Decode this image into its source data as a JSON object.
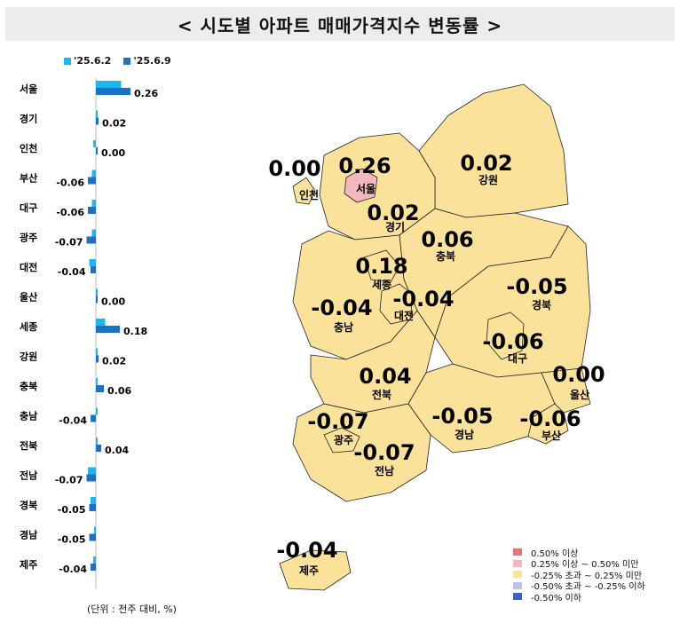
{
  "title": "< 시도별 아파트 매매가격지수 변동률 >",
  "legend": [
    {
      "label": "'25.6.2",
      "color": "#1ab8f0"
    },
    {
      "label": "'25.6.9",
      "color": "#1a72c4"
    }
  ],
  "unit_note": "(단위 : 전주 대비, %)",
  "chart_data": {
    "type": "bar",
    "categories": [
      "서울",
      "경기",
      "인천",
      "부산",
      "대구",
      "광주",
      "대전",
      "울산",
      "세종",
      "강원",
      "충북",
      "충남",
      "전북",
      "전남",
      "경북",
      "경남",
      "제주"
    ],
    "series": [
      {
        "name": "'25.6.2",
        "values": [
          0.19,
          0.0,
          -0.02,
          -0.03,
          -0.03,
          -0.03,
          -0.05,
          0.0,
          0.07,
          0.01,
          0.0,
          0.0,
          0.0,
          -0.06,
          -0.04,
          -0.01,
          -0.02
        ]
      },
      {
        "name": "'25.6.9",
        "values": [
          0.26,
          0.02,
          0.0,
          -0.06,
          -0.06,
          -0.07,
          -0.04,
          0.0,
          0.18,
          0.02,
          0.06,
          -0.04,
          0.04,
          -0.07,
          -0.05,
          -0.05,
          -0.04
        ]
      }
    ],
    "value_labels": [
      "0.26",
      "0.02",
      "0.00",
      "-0.06",
      "-0.06",
      "-0.07",
      "-0.04",
      "0.00",
      "0.18",
      "0.02",
      "0.06",
      "-0.04",
      "0.04",
      "-0.07",
      "-0.05",
      "-0.05",
      "-0.04"
    ],
    "orientation": "horizontal"
  },
  "map": {
    "regions": [
      {
        "name": "서울",
        "value": "0.26",
        "color": "#f2b8be"
      },
      {
        "name": "인천",
        "value": "0.00",
        "color": "#fbe29a"
      },
      {
        "name": "경기",
        "value": "0.02",
        "color": "#fbe29a"
      },
      {
        "name": "강원",
        "value": "0.02",
        "color": "#fbe29a"
      },
      {
        "name": "충북",
        "value": "0.06",
        "color": "#fbe29a"
      },
      {
        "name": "세종",
        "value": "0.18",
        "color": "#fbe29a"
      },
      {
        "name": "대전",
        "value": "-0.04",
        "color": "#fbe29a"
      },
      {
        "name": "충남",
        "value": "-0.04",
        "color": "#fbe29a"
      },
      {
        "name": "경북",
        "value": "-0.05",
        "color": "#fbe29a"
      },
      {
        "name": "대구",
        "value": "-0.06",
        "color": "#fbe29a"
      },
      {
        "name": "울산",
        "value": "0.00",
        "color": "#fbe29a"
      },
      {
        "name": "전북",
        "value": "0.04",
        "color": "#fbe29a"
      },
      {
        "name": "광주",
        "value": "-0.07",
        "color": "#fbe29a"
      },
      {
        "name": "경남",
        "value": "-0.05",
        "color": "#fbe29a"
      },
      {
        "name": "부산",
        "value": "-0.06",
        "color": "#fbe29a"
      },
      {
        "name": "전남",
        "value": "-0.07",
        "color": "#fbe29a"
      },
      {
        "name": "제주",
        "value": "-0.04",
        "color": "#fbe29a"
      }
    ],
    "legend": [
      {
        "label": "0.50% 이상",
        "color": "#e8717a"
      },
      {
        "label": "0.25% 이상 ~ 0.50% 미만",
        "color": "#f2b8be"
      },
      {
        "label": "-0.25% 초과 ~ 0.25% 미만",
        "color": "#fbe29a"
      },
      {
        "label": "-0.50% 초과 ~ -0.25% 이하",
        "color": "#b7c4e8"
      },
      {
        "label": "-0.50% 이하",
        "color": "#3a63c8"
      }
    ]
  }
}
